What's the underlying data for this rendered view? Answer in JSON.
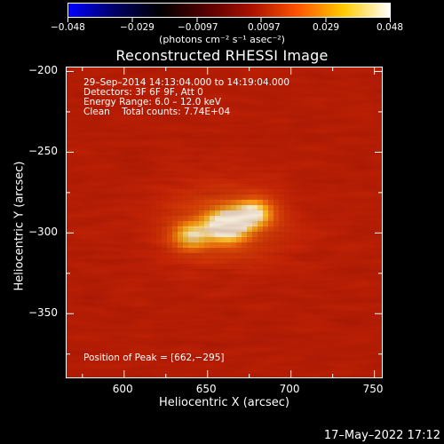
{
  "colorbar": {
    "ticks": [
      "−0.048",
      "−0.029",
      "−0.0097",
      "0.0097",
      "0.029",
      "0.048"
    ],
    "label": "(photons cm⁻² s⁻¹ asec⁻²)",
    "colors": [
      "#0000ff",
      "#000066",
      "#000000",
      "#550000",
      "#aa1100",
      "#ff5500",
      "#ffcc00",
      "#ffffff"
    ]
  },
  "chart_data": {
    "type": "heatmap",
    "title": "Reconstructed RHESSI Image",
    "xlabel": "Heliocentric X (arcsec)",
    "ylabel": "Heliocentric Y (arcsec)",
    "xlim": [
      565,
      755
    ],
    "ylim": [
      -390,
      -197
    ],
    "x_ticks": [
      "600",
      "650",
      "700",
      "750"
    ],
    "x_tick_values": [
      600,
      650,
      700,
      750
    ],
    "y_ticks": [
      "−200",
      "−250",
      "−300",
      "−350"
    ],
    "y_tick_values": [
      -200,
      -250,
      -300,
      -350
    ],
    "peak": [
      662,
      -295
    ],
    "sources": [
      {
        "x": 662,
        "y": -295,
        "sigma_x": 9,
        "sigma_y": 7,
        "amp": 1.0
      },
      {
        "x": 678,
        "y": -288,
        "sigma_x": 8,
        "sigma_y": 6,
        "amp": 0.75
      },
      {
        "x": 640,
        "y": -302,
        "sigma_x": 8,
        "sigma_y": 6,
        "amp": 0.65
      },
      {
        "x": 660,
        "y": -295,
        "sigma_x": 28,
        "sigma_y": 18,
        "amp": 0.35
      }
    ],
    "annotations": {
      "line1": "29–Sep–2014 14:13:04.000 to 14:19:04.000",
      "line2": "Detectors: 3F 6F 9F, Att 0",
      "line3": "Energy Range: 6.0 – 12.0 keV",
      "line4": "Clean    Total counts: 7.74E+04",
      "peak_text": "Position of Peak = [662,−295]"
    }
  },
  "footer": "17–May–2022 17:12"
}
